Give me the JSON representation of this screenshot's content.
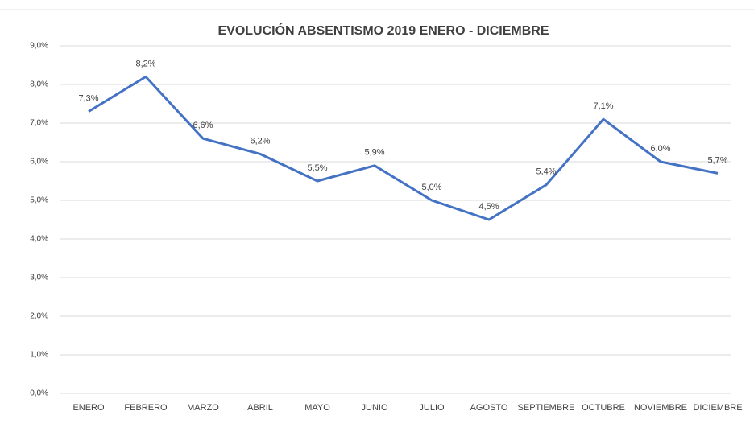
{
  "chart_data": {
    "type": "line",
    "title": "EVOLUCIÓN  ABSENTISMO 2019 ENERO - DICIEMBRE",
    "categories": [
      "ENERO",
      "FEBRERO",
      "MARZO",
      "ABRIL",
      "MAYO",
      "JUNIO",
      "JULIO",
      "AGOSTO",
      "SEPTIEMBRE",
      "OCTUBRE",
      "NOVIEMBRE",
      "DICIEMBRE"
    ],
    "series": [
      {
        "name": "Absentismo",
        "color": "#4472c4",
        "values": [
          7.3,
          8.2,
          6.6,
          6.2,
          5.5,
          5.9,
          5.0,
          4.5,
          5.4,
          7.1,
          6.0,
          5.7
        ],
        "value_labels": [
          "7,3%",
          "8,2%",
          "6,6%",
          "6,2%",
          "5,5%",
          "5,9%",
          "5,0%",
          "4,5%",
          "5,4%",
          "7,1%",
          "6,0%",
          "5,7%"
        ]
      }
    ],
    "ylim": [
      0,
      9
    ],
    "yticks": [
      {
        "value": 0,
        "label": "0,0%"
      },
      {
        "value": 1,
        "label": "1,0%"
      },
      {
        "value": 2,
        "label": "2,0%"
      },
      {
        "value": 3,
        "label": "3,0%"
      },
      {
        "value": 4,
        "label": "4,0%"
      },
      {
        "value": 5,
        "label": "5,0%"
      },
      {
        "value": 6,
        "label": "6,0%"
      },
      {
        "value": 7,
        "label": "7,0%"
      },
      {
        "value": 8,
        "label": "8,0%"
      },
      {
        "value": 9,
        "label": "9,0%"
      }
    ],
    "grid": true
  }
}
